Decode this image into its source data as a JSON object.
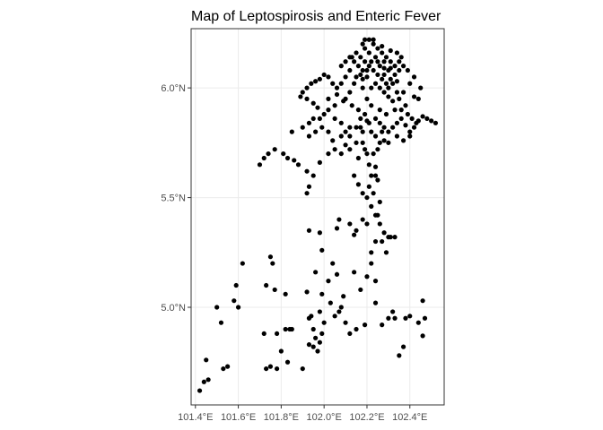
{
  "chart_data": {
    "type": "scatter",
    "title": "Map of Leptospirosis and Enteric Fever",
    "xlabel": "",
    "ylabel": "",
    "xlim": [
      101.38,
      102.56
    ],
    "ylim": [
      4.555,
      6.27
    ],
    "x_ticks": [
      101.4,
      101.6,
      101.8,
      102.0,
      102.2,
      102.4
    ],
    "x_tick_labels": [
      "101.4°E",
      "101.6°E",
      "101.8°E",
      "102.0°E",
      "102.2°E",
      "102.4°E"
    ],
    "y_ticks": [
      5.0,
      5.5,
      6.0
    ],
    "y_tick_labels": [
      "5.0°N",
      "5.5°N",
      "6.0°N"
    ],
    "grid": true,
    "legend": "none",
    "point_color": "#000000",
    "panel_border_color": "#333333",
    "grid_color": "#ebebeb",
    "points": [
      [
        101.42,
        4.62
      ],
      [
        101.44,
        4.66
      ],
      [
        101.46,
        4.67
      ],
      [
        101.45,
        4.76
      ],
      [
        101.53,
        4.72
      ],
      [
        101.55,
        4.73
      ],
      [
        101.52,
        4.93
      ],
      [
        101.5,
        5.0
      ],
      [
        101.58,
        5.03
      ],
      [
        101.6,
        5.0
      ],
      [
        101.59,
        5.1
      ],
      [
        101.62,
        5.2
      ],
      [
        101.73,
        4.72
      ],
      [
        101.75,
        4.73
      ],
      [
        101.78,
        4.72
      ],
      [
        101.8,
        4.8
      ],
      [
        101.83,
        4.75
      ],
      [
        101.78,
        4.88
      ],
      [
        101.82,
        4.9
      ],
      [
        101.85,
        4.9
      ],
      [
        101.72,
        4.88
      ],
      [
        101.73,
        5.1
      ],
      [
        101.77,
        5.08
      ],
      [
        101.75,
        5.23
      ],
      [
        101.76,
        5.2
      ],
      [
        101.82,
        5.06
      ],
      [
        101.84,
        4.9
      ],
      [
        101.9,
        4.72
      ],
      [
        101.93,
        4.83
      ],
      [
        101.95,
        4.82
      ],
      [
        101.96,
        4.86
      ],
      [
        101.97,
        4.8
      ],
      [
        101.98,
        4.84
      ],
      [
        101.95,
        4.9
      ],
      [
        101.99,
        4.88
      ],
      [
        101.94,
        4.96
      ],
      [
        101.98,
        4.98
      ],
      [
        102.0,
        4.93
      ],
      [
        101.92,
        5.07
      ],
      [
        101.96,
        5.16
      ],
      [
        101.99,
        5.06
      ],
      [
        102.02,
        5.12
      ],
      [
        102.03,
        5.02
      ],
      [
        102.05,
        4.96
      ],
      [
        102.07,
        4.98
      ],
      [
        102.04,
        5.2
      ],
      [
        102.06,
        5.15
      ],
      [
        101.98,
        5.34
      ],
      [
        101.99,
        5.26
      ],
      [
        102.09,
        5.05
      ],
      [
        102.08,
        5.0
      ],
      [
        102.1,
        4.93
      ],
      [
        101.93,
        4.95
      ],
      [
        102.12,
        4.88
      ],
      [
        102.14,
        5.16
      ],
      [
        102.17,
        5.08
      ],
      [
        102.2,
        5.14
      ],
      [
        102.22,
        5.2
      ],
      [
        102.24,
        5.12
      ],
      [
        102.24,
        5.02
      ],
      [
        102.15,
        4.9
      ],
      [
        102.19,
        4.92
      ],
      [
        102.27,
        4.92
      ],
      [
        102.3,
        4.95
      ],
      [
        102.33,
        4.95
      ],
      [
        102.32,
        4.98
      ],
      [
        102.35,
        4.78
      ],
      [
        102.37,
        4.82
      ],
      [
        102.38,
        4.95
      ],
      [
        102.4,
        4.96
      ],
      [
        102.44,
        4.93
      ],
      [
        102.46,
        4.87
      ],
      [
        102.46,
        5.03
      ],
      [
        102.47,
        4.95
      ],
      [
        102.29,
        5.25
      ],
      [
        102.27,
        5.3
      ],
      [
        102.3,
        5.32
      ],
      [
        102.31,
        5.32
      ],
      [
        102.28,
        5.34
      ],
      [
        102.33,
        5.32
      ],
      [
        102.25,
        5.42
      ],
      [
        102.26,
        5.48
      ],
      [
        102.2,
        5.38
      ],
      [
        102.18,
        5.4
      ],
      [
        102.15,
        5.35
      ],
      [
        102.14,
        5.33
      ],
      [
        102.12,
        5.38
      ],
      [
        102.07,
        5.4
      ],
      [
        102.06,
        5.36
      ],
      [
        101.93,
        5.35
      ],
      [
        101.92,
        5.52
      ],
      [
        101.93,
        5.55
      ],
      [
        101.95,
        5.6
      ],
      [
        101.98,
        5.66
      ],
      [
        102.02,
        5.7
      ],
      [
        102.05,
        5.72
      ],
      [
        102.08,
        5.7
      ],
      [
        102.1,
        5.74
      ],
      [
        101.92,
        5.62
      ],
      [
        101.88,
        5.65
      ],
      [
        101.86,
        5.67
      ],
      [
        101.83,
        5.68
      ],
      [
        101.81,
        5.7
      ],
      [
        101.77,
        5.72
      ],
      [
        101.74,
        5.7
      ],
      [
        101.72,
        5.68
      ],
      [
        101.7,
        5.65
      ],
      [
        101.85,
        5.8
      ],
      [
        101.9,
        5.82
      ],
      [
        101.93,
        5.84
      ],
      [
        101.95,
        5.86
      ],
      [
        101.98,
        5.86
      ],
      [
        102.0,
        5.88
      ],
      [
        102.02,
        5.9
      ],
      [
        102.05,
        5.92
      ],
      [
        102.08,
        5.84
      ],
      [
        102.1,
        5.8
      ],
      [
        102.12,
        5.78
      ],
      [
        102.15,
        5.82
      ],
      [
        102.17,
        5.86
      ],
      [
        102.2,
        5.85
      ],
      [
        102.22,
        5.8
      ],
      [
        102.24,
        5.78
      ],
      [
        102.26,
        5.75
      ],
      [
        102.28,
        5.76
      ],
      [
        102.3,
        5.8
      ],
      [
        102.32,
        5.82
      ],
      [
        102.34,
        5.84
      ],
      [
        102.36,
        5.86
      ],
      [
        102.38,
        5.83
      ],
      [
        102.4,
        5.8
      ],
      [
        102.42,
        5.82
      ],
      [
        102.44,
        5.85
      ],
      [
        102.46,
        5.87
      ],
      [
        102.48,
        5.86
      ],
      [
        102.5,
        5.85
      ],
      [
        102.52,
        5.84
      ],
      [
        102.44,
        5.95
      ],
      [
        102.45,
        6.0
      ],
      [
        102.42,
        5.96
      ],
      [
        102.38,
        5.92
      ],
      [
        102.35,
        5.95
      ],
      [
        102.32,
        5.94
      ],
      [
        102.3,
        5.96
      ],
      [
        102.28,
        5.98
      ],
      [
        102.26,
        6.0
      ],
      [
        102.24,
        6.02
      ],
      [
        102.2,
        6.05
      ],
      [
        102.18,
        6.08
      ],
      [
        102.16,
        6.1
      ],
      [
        102.14,
        6.12
      ],
      [
        102.12,
        6.08
      ],
      [
        102.1,
        6.05
      ],
      [
        102.08,
        6.02
      ],
      [
        102.06,
        6.0
      ],
      [
        102.04,
        6.02
      ],
      [
        102.02,
        6.05
      ],
      [
        102.0,
        6.06
      ],
      [
        101.98,
        6.04
      ],
      [
        101.96,
        6.03
      ],
      [
        101.94,
        6.02
      ],
      [
        101.92,
        6.0
      ],
      [
        101.9,
        5.98
      ],
      [
        101.89,
        5.96
      ],
      [
        101.92,
        5.95
      ],
      [
        101.95,
        5.93
      ],
      [
        101.97,
        5.91
      ],
      [
        102.18,
        6.2
      ],
      [
        102.19,
        6.22
      ],
      [
        102.21,
        6.22
      ],
      [
        102.23,
        6.2
      ],
      [
        102.25,
        6.18
      ],
      [
        102.27,
        6.16
      ],
      [
        102.29,
        6.14
      ],
      [
        102.31,
        6.12
      ],
      [
        102.33,
        6.1
      ],
      [
        102.35,
        6.12
      ],
      [
        102.37,
        6.1
      ],
      [
        102.35,
        6.08
      ],
      [
        102.33,
        6.06
      ],
      [
        102.31,
        6.04
      ],
      [
        102.29,
        6.02
      ],
      [
        102.27,
        6.04
      ],
      [
        102.25,
        6.06
      ],
      [
        102.23,
        6.08
      ],
      [
        102.21,
        6.1
      ],
      [
        102.19,
        6.12
      ],
      [
        102.17,
        6.14
      ],
      [
        102.15,
        6.16
      ],
      [
        102.13,
        6.14
      ],
      [
        102.15,
        6.05
      ],
      [
        102.18,
        6.0
      ],
      [
        102.2,
        5.95
      ],
      [
        102.22,
        5.92
      ],
      [
        102.19,
        5.88
      ],
      [
        102.17,
        5.82
      ],
      [
        102.18,
        5.75
      ],
      [
        102.2,
        5.7
      ],
      [
        102.21,
        5.65
      ],
      [
        102.22,
        5.6
      ],
      [
        102.21,
        5.55
      ],
      [
        102.2,
        5.5
      ],
      [
        102.22,
        5.46
      ],
      [
        102.24,
        5.42
      ],
      [
        102.26,
        5.38
      ],
      [
        102.23,
        5.52
      ],
      [
        102.25,
        5.58
      ],
      [
        102.24,
        5.64
      ],
      [
        102.23,
        5.7
      ],
      [
        102.25,
        5.72
      ],
      [
        102.19,
        5.72
      ],
      [
        102.16,
        5.68
      ],
      [
        102.14,
        5.6
      ],
      [
        102.16,
        5.56
      ],
      [
        102.18,
        5.52
      ],
      [
        102.24,
        5.3
      ],
      [
        102.22,
        5.25
      ],
      [
        102.24,
        5.6
      ],
      [
        102.08,
        6.1
      ],
      [
        102.1,
        6.12
      ],
      [
        102.12,
        6.14
      ],
      [
        102.28,
        6.12
      ],
      [
        102.3,
        6.08
      ],
      [
        102.32,
        6.02
      ],
      [
        102.34,
        5.98
      ],
      [
        102.36,
        5.9
      ],
      [
        102.39,
        5.88
      ],
      [
        102.41,
        5.86
      ],
      [
        102.43,
        5.84
      ],
      [
        102.4,
        5.78
      ],
      [
        102.37,
        5.76
      ],
      [
        102.34,
        5.78
      ],
      [
        102.3,
        5.75
      ],
      [
        102.27,
        5.8
      ],
      [
        102.12,
        5.82
      ],
      [
        102.08,
        5.78
      ],
      [
        102.04,
        5.76
      ],
      [
        102.02,
        5.8
      ],
      [
        101.99,
        5.82
      ],
      [
        101.96,
        5.8
      ],
      [
        101.93,
        5.78
      ],
      [
        102.02,
        5.95
      ],
      [
        102.06,
        5.97
      ],
      [
        102.1,
        5.95
      ],
      [
        102.13,
        5.92
      ],
      [
        102.16,
        5.9
      ],
      [
        102.26,
        5.9
      ],
      [
        102.29,
        5.88
      ],
      [
        102.33,
        5.9
      ],
      [
        102.37,
        5.98
      ],
      [
        102.4,
        6.02
      ],
      [
        102.42,
        6.05
      ],
      [
        102.39,
        6.08
      ],
      [
        102.36,
        6.14
      ],
      [
        102.34,
        6.16
      ],
      [
        102.31,
        6.17
      ],
      [
        102.27,
        6.19
      ],
      [
        102.23,
        6.22
      ],
      [
        102.21,
        6.16
      ],
      [
        102.19,
        6.18
      ],
      [
        102.24,
        6.14
      ],
      [
        102.26,
        6.1
      ],
      [
        102.28,
        6.06
      ],
      [
        102.3,
        6.0
      ],
      [
        102.22,
        6.0
      ],
      [
        102.18,
        6.04
      ],
      [
        102.14,
        6.02
      ],
      [
        102.12,
        5.98
      ],
      [
        102.09,
        5.94
      ],
      [
        102.05,
        5.86
      ],
      [
        102.12,
        5.72
      ],
      [
        102.15,
        5.75
      ],
      [
        102.18,
        5.8
      ],
      [
        102.21,
        5.84
      ],
      [
        102.24,
        5.86
      ],
      [
        102.26,
        5.84
      ],
      [
        102.28,
        5.82
      ],
      [
        102.17,
        6.06
      ],
      [
        102.2,
        6.08
      ],
      [
        102.22,
        6.12
      ],
      [
        102.25,
        6.12
      ],
      [
        102.28,
        6.09
      ],
      [
        102.31,
        6.09
      ],
      [
        102.34,
        6.03
      ]
    ]
  }
}
